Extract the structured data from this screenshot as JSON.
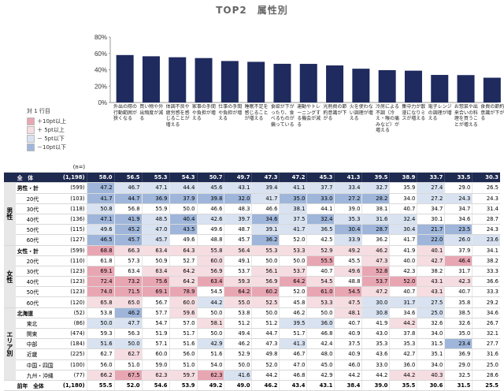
{
  "page_title": "TOP2　属性別",
  "legend": {
    "title": "対 1 行目",
    "items": [
      {
        "label": "＋10pt以上",
        "color": "#e8a6b3"
      },
      {
        "label": "＋ 5pt以上",
        "color": "#f6dde2"
      },
      {
        "label": "－ 5pt以下",
        "color": "#d8e2f1"
      },
      {
        "label": "－10pt以下",
        "color": "#9fb6da"
      }
    ]
  },
  "colors": {
    "bar": "#1f2a5e",
    "total_row": "#1f2a50"
  },
  "chart_data": {
    "type": "bar",
    "ylim": [
      0,
      80
    ],
    "yticks": [
      "0%",
      "20%",
      "40%",
      "60%",
      "80%"
    ],
    "grid": false,
    "categories": [
      "外出の際の行動範囲が狭くなる",
      "買い物や外出頻度が減る",
      "体調不良や疲労感を感じることが増える",
      "家事の手間や負担が増える",
      "仕事の手間や負担が増える",
      "睡眠不足を感じることが増える",
      "食欲が下がったり、食べるものが偏っている",
      "運動やトレーニングする機会が減る",
      "光熱費の節約意識が下がる",
      "火を使わない調理が増える",
      "冷房による不調（冷え・喉の痛みなど）が増える",
      "集中力が散漫になりミスが増える",
      "電子レンジの調理が増える",
      "お惣菜や出来合いの料理を買うことが増える",
      "食費の節約意識が下がる"
    ],
    "values": [
      58.0,
      56.5,
      55.3,
      54.3,
      50.7,
      49.7,
      47.3,
      47.2,
      45.3,
      41.3,
      39.5,
      38.9,
      33.7,
      33.5,
      30.3
    ]
  },
  "table": {
    "n_header": "(n=)",
    "total": {
      "label": "全　体",
      "n": "(1,198)",
      "values": [
        "58.0",
        "56.5",
        "55.3",
        "54.3",
        "50.7",
        "49.7",
        "47.3",
        "47.2",
        "45.3",
        "41.3",
        "39.5",
        "38.9",
        "33.7",
        "33.5",
        "30.3"
      ]
    },
    "groups": [
      {
        "name": "男性",
        "rows": [
          {
            "label": "男性・計",
            "n": "(599)",
            "values": [
              "47.2",
              "46.7",
              "47.1",
              "44.4",
              "45.6",
              "43.1",
              "39.4",
              "41.1",
              "37.7",
              "33.4",
              "32.7",
              "35.9",
              "27.4",
              "29.0",
              "26.5"
            ],
            "shade": [
              "-10",
              "-5",
              "-5",
              "-5",
              "-5",
              "-5",
              "-5",
              "-5",
              "-5",
              "-5",
              "-5",
              "",
              "-5",
              "",
              ""
            ]
          },
          {
            "label": "20代",
            "n": "(103)",
            "values": [
              "41.7",
              "44.7",
              "36.9",
              "37.9",
              "39.8",
              "32.0",
              "41.7",
              "35.0",
              "33.0",
              "27.2",
              "28.2",
              "34.0",
              "27.2",
              "24.3",
              "24.3"
            ],
            "shade": [
              "-10",
              "-10",
              "-10",
              "-10",
              "-10",
              "-10",
              "-5",
              "-10",
              "-10",
              "-10",
              "-10",
              "",
              "-5",
              "-5",
              ""
            ]
          },
          {
            "label": "30代",
            "n": "(118)",
            "values": [
              "50.8",
              "56.8",
              "55.9",
              "50.0",
              "46.6",
              "48.3",
              "46.6",
              "38.1",
              "44.1",
              "39.0",
              "38.1",
              "40.7",
              "34.7",
              "34.7",
              "31.4"
            ],
            "shade": [
              "-5",
              "",
              "",
              "",
              "",
              "",
              "",
              "-5",
              "",
              "",
              "",
              "",
              "",
              "",
              ""
            ]
          },
          {
            "label": "40代",
            "n": "(136)",
            "values": [
              "47.1",
              "41.9",
              "48.5",
              "40.4",
              "42.6",
              "39.7",
              "34.6",
              "37.5",
              "32.4",
              "35.3",
              "31.6",
              "32.4",
              "30.1",
              "34.6",
              "28.7"
            ],
            "shade": [
              "-10",
              "-10",
              "-5",
              "-10",
              "-5",
              "-5",
              "-10",
              "-5",
              "-10",
              "-5",
              "-5",
              "-5",
              "",
              "",
              ""
            ]
          },
          {
            "label": "50代",
            "n": "(115)",
            "values": [
              "49.6",
              "45.2",
              "47.0",
              "43.5",
              "49.6",
              "48.7",
              "39.1",
              "41.7",
              "36.5",
              "30.4",
              "28.7",
              "30.4",
              "21.7",
              "23.5",
              "24.3"
            ],
            "shade": [
              "-5",
              "-10",
              "-5",
              "-10",
              "",
              "",
              "-5",
              "-5",
              "-5",
              "-10",
              "-10",
              "-5",
              "-10",
              "-10",
              ""
            ]
          },
          {
            "label": "60代",
            "n": "(127)",
            "values": [
              "46.5",
              "45.7",
              "45.7",
              "49.6",
              "48.8",
              "45.7",
              "36.2",
              "52.0",
              "42.5",
              "33.9",
              "36.2",
              "41.7",
              "22.0",
              "26.0",
              "23.6"
            ],
            "shade": [
              "-10",
              "-10",
              "-5",
              "",
              "",
              "",
              "-10",
              "",
              "",
              "-5",
              "",
              "",
              "-10",
              "-5",
              "-5"
            ]
          }
        ]
      },
      {
        "name": "女性",
        "rows": [
          {
            "label": "女性・計",
            "n": "(599)",
            "values": [
              "68.8",
              "66.3",
              "63.4",
              "64.3",
              "55.8",
              "56.4",
              "55.3",
              "53.3",
              "52.9",
              "49.2",
              "46.2",
              "41.9",
              "40.1",
              "37.9",
              "34.1"
            ],
            "shade": [
              "+10",
              "+5",
              "+5",
              "+5",
              "+5",
              "+5",
              "+5",
              "+5",
              "+5",
              "+5",
              "+5",
              "",
              "+5",
              "",
              ""
            ]
          },
          {
            "label": "20代",
            "n": "(110)",
            "values": [
              "61.8",
              "57.3",
              "50.9",
              "52.7",
              "60.0",
              "49.1",
              "50.0",
              "50.0",
              "55.5",
              "45.5",
              "47.3",
              "40.0",
              "42.7",
              "46.4",
              "38.2"
            ],
            "shade": [
              "",
              "",
              "",
              "",
              "+5",
              "",
              "",
              "",
              "+10",
              "",
              "+5",
              "",
              "+5",
              "+10",
              ""
            ]
          },
          {
            "label": "30代",
            "n": "(123)",
            "values": [
              "69.1",
              "63.4",
              "63.4",
              "64.2",
              "56.9",
              "53.7",
              "56.1",
              "53.7",
              "40.7",
              "49.6",
              "52.8",
              "42.3",
              "38.2",
              "31.7",
              "33.3"
            ],
            "shade": [
              "+10",
              "",
              "+5",
              "+5",
              "+5",
              "",
              "+5",
              "+5",
              "",
              "+5",
              "+10",
              "",
              "",
              "",
              ""
            ]
          },
          {
            "label": "40代",
            "n": "(123)",
            "values": [
              "72.4",
              "73.2",
              "75.6",
              "64.2",
              "63.4",
              "59.3",
              "56.9",
              "64.2",
              "54.5",
              "48.8",
              "53.7",
              "52.0",
              "43.1",
              "42.3",
              "36.6"
            ],
            "shade": [
              "+10",
              "+10",
              "+10",
              "+5",
              "+10",
              "+5",
              "+5",
              "+10",
              "+5",
              "",
              "+10",
              "+10",
              "+5",
              "+5",
              ""
            ]
          },
          {
            "label": "50代",
            "n": "(123)",
            "values": [
              "74.0",
              "71.5",
              "69.1",
              "78.9",
              "54.5",
              "64.2",
              "60.2",
              "52.0",
              "61.0",
              "54.5",
              "47.2",
              "40.7",
              "43.1",
              "40.7",
              "33.3"
            ],
            "shade": [
              "+10",
              "+10",
              "+10",
              "+10",
              "",
              "+10",
              "+10",
              "",
              "+10",
              "+10",
              "+5",
              "",
              "+5",
              "",
              ""
            ]
          },
          {
            "label": "60代",
            "n": "(120)",
            "values": [
              "65.8",
              "65.0",
              "56.7",
              "60.0",
              "44.2",
              "55.0",
              "52.5",
              "45.8",
              "53.3",
              "47.5",
              "30.0",
              "31.7",
              "27.5",
              "35.8",
              "29.2"
            ],
            "shade": [
              "+5",
              "+5",
              "",
              "+5",
              "-5",
              "+5",
              "+5",
              "",
              "+5",
              "+5",
              "-5",
              "-5",
              "-5",
              "",
              ""
            ]
          }
        ]
      },
      {
        "name": "エリア別",
        "rows": [
          {
            "label": "北海道",
            "n": "(52)",
            "values": [
              "53.8",
              "46.2",
              "57.7",
              "59.6",
              "50.0",
              "53.8",
              "50.0",
              "46.2",
              "50.0",
              "48.1",
              "30.8",
              "34.6",
              "25.0",
              "38.5",
              "34.6"
            ],
            "shade": [
              "",
              "-10",
              "",
              "+5",
              "",
              "",
              "",
              "",
              "",
              "+5",
              "-5",
              "",
              "-5",
              "",
              ""
            ]
          },
          {
            "label": "東北",
            "n": "(86)",
            "values": [
              "50.0",
              "47.7",
              "54.7",
              "57.0",
              "58.1",
              "51.2",
              "51.2",
              "39.5",
              "36.0",
              "40.7",
              "41.9",
              "44.2",
              "32.6",
              "32.6",
              "26.7"
            ],
            "shade": [
              "-5",
              "-5",
              "",
              "",
              "+5",
              "",
              "",
              "-5",
              "-5",
              "",
              "",
              "+5",
              "",
              "",
              ""
            ]
          },
          {
            "label": "関東",
            "n": "(474)",
            "values": [
              "59.3",
              "56.3",
              "51.9",
              "51.7",
              "50.0",
              "49.4",
              "44.7",
              "51.7",
              "46.8",
              "40.9",
              "43.0",
              "37.8",
              "34.0",
              "35.0",
              "32.1"
            ],
            "shade": [
              "",
              "",
              "",
              "",
              "",
              "",
              "",
              "",
              "",
              "",
              "",
              "",
              "",
              "",
              ""
            ]
          },
          {
            "label": "中部",
            "n": "(184)",
            "values": [
              "51.6",
              "50.0",
              "57.1",
              "51.6",
              "42.9",
              "46.2",
              "47.3",
              "41.3",
              "42.4",
              "37.5",
              "35.3",
              "35.3",
              "31.5",
              "23.4",
              "27.7"
            ],
            "shade": [
              "-5",
              "-5",
              "",
              "",
              "-5",
              "",
              "",
              "-5",
              "",
              "",
              "",
              "",
              "",
              "-10",
              ""
            ]
          },
          {
            "label": "近畿",
            "n": "(225)",
            "values": [
              "62.7",
              "62.7",
              "60.0",
              "56.0",
              "51.6",
              "52.9",
              "49.8",
              "46.7",
              "48.0",
              "40.9",
              "43.6",
              "42.7",
              "35.1",
              "36.9",
              "31.6"
            ],
            "shade": [
              "",
              "+5",
              "",
              "",
              "",
              "",
              "",
              "",
              "",
              "",
              "",
              "",
              "",
              "",
              ""
            ]
          },
          {
            "label": "中国・四国",
            "n": "(100)",
            "values": [
              "56.0",
              "51.0",
              "59.0",
              "51.0",
              "54.0",
              "50.0",
              "52.0",
              "47.0",
              "45.0",
              "46.0",
              "33.0",
              "36.0",
              "34.0",
              "29.0",
              "25.0"
            ],
            "shade": [
              "",
              "",
              "",
              "",
              "",
              "",
              "",
              "",
              "",
              "",
              "",
              "",
              "",
              "",
              ""
            ]
          },
          {
            "label": "九州・沖縄",
            "n": "(77)",
            "values": [
              "66.2",
              "67.5",
              "62.3",
              "59.7",
              "62.3",
              "41.6",
              "44.2",
              "46.8",
              "42.9",
              "44.2",
              "44.2",
              "44.2",
              "40.3",
              "32.5",
              "28.6"
            ],
            "shade": [
              "+5",
              "+10",
              "+5",
              "+5",
              "+10",
              "-5",
              "",
              "",
              "",
              "",
              "",
              "+5",
              "+5",
              "",
              ""
            ]
          }
        ]
      }
    ],
    "prev": {
      "label": "前年　全体",
      "n": "(1,180)",
      "values": [
        "55.5",
        "52.0",
        "54.6",
        "53.9",
        "49.2",
        "49.0",
        "46.2",
        "43.4",
        "43.1",
        "38.4",
        "39.0",
        "35.5",
        "30.6",
        "31.5",
        "25.5"
      ]
    }
  }
}
